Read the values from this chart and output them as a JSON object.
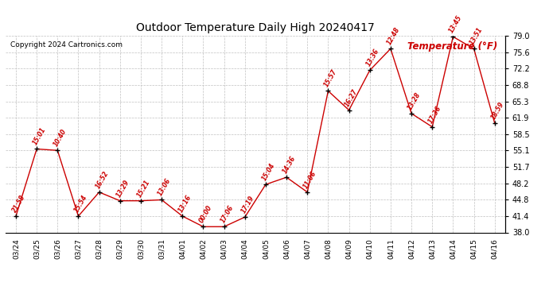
{
  "title": "Outdoor Temperature Daily High 20240417",
  "copyright": "Copyright 2024 Cartronics.com",
  "legend_label": "Temperature (°F)",
  "dates": [
    "03/24",
    "03/25",
    "03/26",
    "03/27",
    "03/28",
    "03/29",
    "03/30",
    "03/31",
    "04/01",
    "04/02",
    "04/03",
    "04/04",
    "04/05",
    "04/06",
    "04/07",
    "04/08",
    "04/09",
    "04/10",
    "04/11",
    "04/12",
    "04/13",
    "04/14",
    "04/15",
    "04/16"
  ],
  "temps": [
    41.4,
    55.4,
    55.1,
    41.4,
    46.4,
    44.6,
    44.6,
    44.8,
    41.4,
    39.2,
    39.2,
    41.2,
    48.0,
    49.5,
    46.4,
    67.5,
    63.5,
    71.8,
    76.3,
    62.8,
    60.0,
    78.8,
    76.3,
    60.8
  ],
  "labels": [
    "21:58",
    "15:01",
    "10:40",
    "15:54",
    "16:52",
    "13:29",
    "15:21",
    "13:06",
    "13:16",
    "00:00",
    "17:06",
    "17:19",
    "15:04",
    "14:36",
    "11:06",
    "15:57",
    "16:27",
    "13:36",
    "12:48",
    "13:28",
    "17:36",
    "13:45",
    "13:51",
    "18:59"
  ],
  "line_color": "#cc0000",
  "marker_color": "#000000",
  "label_color": "#cc0000",
  "bg_color": "#ffffff",
  "grid_color": "#c0c0c0",
  "title_color": "#000000",
  "copyright_color": "#000000",
  "legend_color": "#cc0000",
  "ylim_min": 38.0,
  "ylim_max": 79.0,
  "ytick_vals": [
    38.0,
    41.4,
    44.8,
    48.2,
    51.7,
    55.1,
    58.5,
    61.9,
    65.3,
    68.8,
    72.2,
    75.6,
    79.0
  ],
  "ytick_labels": [
    "38.0",
    "41.4",
    "44.8",
    "48.2",
    "51.7",
    "55.1",
    "58.5",
    "61.9",
    "65.3",
    "68.8",
    "72.2",
    "75.6",
    "79.0"
  ]
}
